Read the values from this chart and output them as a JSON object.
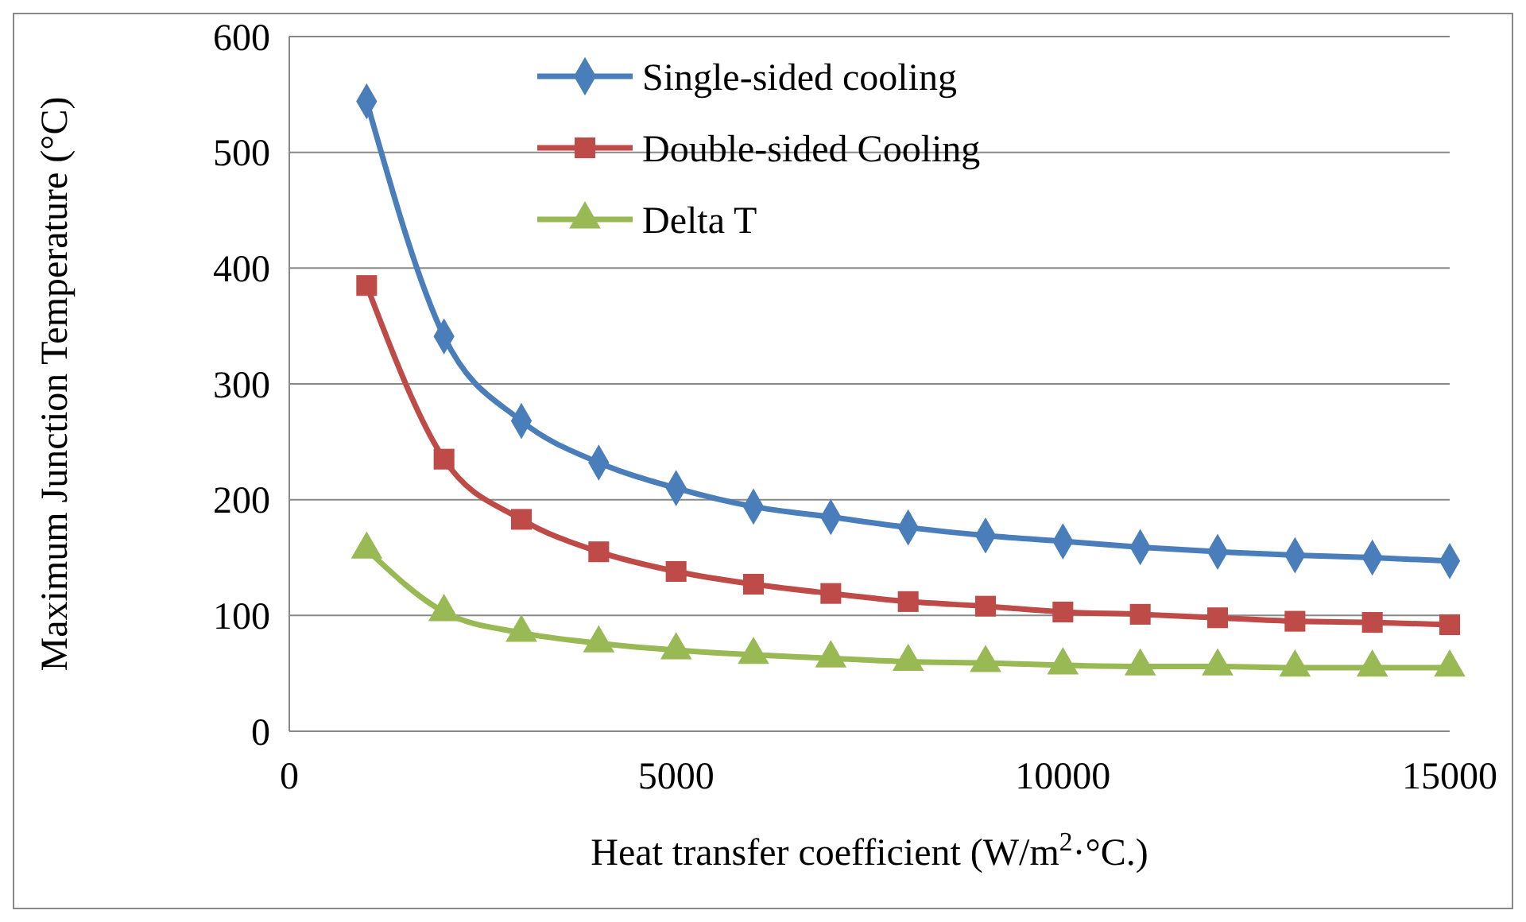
{
  "chart_data": {
    "type": "line",
    "xlabel": "Heat transfer coefficient (W/m$^{2}$·°C.)",
    "ylabel": "Maximum Junction Temperature (°C)",
    "x": [
      1000,
      2000,
      3000,
      4000,
      5000,
      6000,
      7000,
      8000,
      9000,
      10000,
      11000,
      12000,
      13000,
      14000,
      15000
    ],
    "xlim": [
      0,
      15000
    ],
    "xticks": [
      0,
      5000,
      10000,
      15000
    ],
    "ylim": [
      0,
      600
    ],
    "yticks": [
      0,
      100,
      200,
      300,
      400,
      500,
      600
    ],
    "grid": "y",
    "legend": "top",
    "line_style": "solid",
    "series": [
      {
        "name": "Single-sided cooling",
        "color": "#4a7ebb",
        "marker": "diamond",
        "values": [
          544,
          341,
          268,
          232,
          210,
          194,
          185,
          176,
          169,
          164,
          159,
          155,
          152,
          150,
          147
        ]
      },
      {
        "name": "Double-sided Cooling",
        "color": "#be4b48",
        "marker": "square",
        "values": [
          385,
          235,
          183,
          155,
          138,
          127,
          119,
          112,
          108,
          103,
          101,
          98,
          95,
          94,
          92
        ]
      },
      {
        "name": "Delta T",
        "color": "#98b954",
        "marker": "triangle",
        "values": [
          157,
          103,
          85,
          76,
          70,
          66,
          63,
          60,
          59,
          57,
          56,
          56,
          55,
          55,
          55
        ]
      }
    ]
  }
}
